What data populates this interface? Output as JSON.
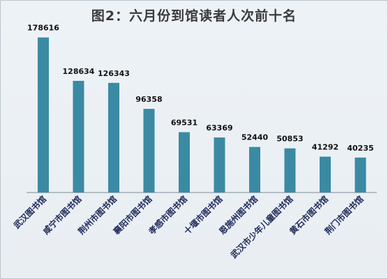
{
  "chart_data": {
    "type": "bar",
    "title": "图2：六月份到馆读者人次前十名",
    "categories": [
      "武汉图书馆",
      "咸宁市图书馆",
      "荆州市图书馆",
      "襄阳市图书馆",
      "孝感市图书馆",
      "十堰市图书馆",
      "恩施州图书馆",
      "武汉市少年儿童图书馆",
      "黄石市图书馆",
      "荆门市图书馆"
    ],
    "values": [
      178616,
      128634,
      126343,
      96358,
      69531,
      63369,
      52440,
      50853,
      41292,
      40235
    ],
    "value_labels": [
      "178616",
      "128634",
      "126343",
      "96358",
      "69531",
      "63369",
      "52440",
      "50853",
      "41292",
      "40235"
    ],
    "xlabel": "",
    "ylabel": "",
    "ylim": [
      0,
      180000
    ],
    "grid": false,
    "colors": {
      "bar": "#3b8aa3",
      "axis": "#7f8a95"
    }
  }
}
